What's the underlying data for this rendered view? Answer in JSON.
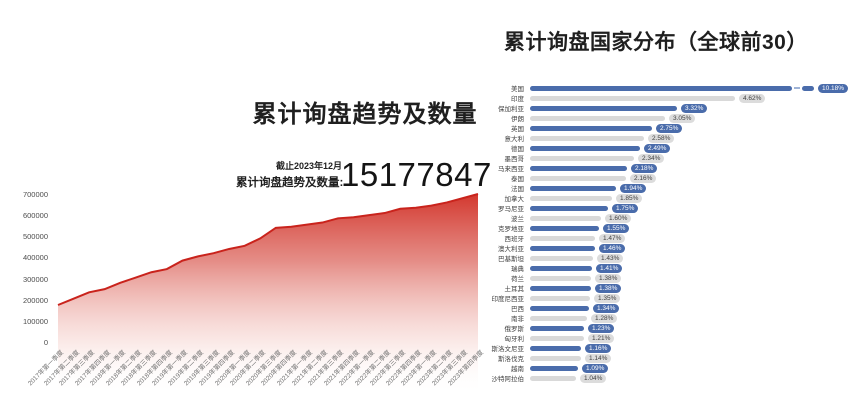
{
  "left_chart": {
    "title": "累计询盘趋势及数量",
    "asof_label": "截止2023年12月",
    "total_label": "累计询盘趋势及数量:",
    "total_value": "15177847"
  },
  "right_chart": {
    "title": "累计询盘国家分布（全球前30）"
  },
  "colors": {
    "area_line_red": "#c9231c",
    "area_fill_red": "#d02a20",
    "bar_blue": "#4a6cab",
    "bar_gray": "#d9d9d9",
    "badge_gray_bg": "#dcdcdc",
    "break_dash": "#9fb3d6"
  },
  "chart_data": [
    {
      "type": "area",
      "title": "累计询盘趋势及数量",
      "x": [
        "2017年第一季度",
        "2017年第二季度",
        "2017年第三季度",
        "2017年第四季度",
        "2018年第一季度",
        "2018年第二季度",
        "2018年第三季度",
        "2018年第四季度",
        "2019年第一季度",
        "2019年第二季度",
        "2019年第三季度",
        "2019年第四季度",
        "2020年第一季度",
        "2020年第二季度",
        "2020年第三季度",
        "2020年第四季度",
        "2021年第一季度",
        "2021年第二季度",
        "2021年第三季度",
        "2021年第四季度",
        "2022年第一季度",
        "2022年第二季度",
        "2022年第三季度",
        "2022年第四季度",
        "2023年第一季度",
        "2023年第二季度",
        "2023年第三季度",
        "2023年第四季度"
      ],
      "values": [
        175000,
        205000,
        235000,
        250000,
        280000,
        305000,
        330000,
        345000,
        385000,
        405000,
        420000,
        440000,
        455000,
        490000,
        540000,
        545000,
        555000,
        565000,
        585000,
        590000,
        600000,
        610000,
        630000,
        635000,
        645000,
        660000,
        680000,
        700000
      ],
      "ylim": [
        0,
        700000
      ],
      "yticks": [
        700000,
        600000,
        500000,
        400000,
        300000,
        200000,
        100000,
        0
      ],
      "grid": false,
      "legend": false
    },
    {
      "type": "bar",
      "orientation": "horizontal",
      "title": "累计询盘国家分布（全球前30）",
      "categories": [
        "美国",
        "印度",
        "保加利亚",
        "伊朗",
        "英国",
        "意大利",
        "德国",
        "墨西哥",
        "马来西亚",
        "泰国",
        "法国",
        "加拿大",
        "罗马尼亚",
        "波兰",
        "克罗地亚",
        "西班牙",
        "澳大利亚",
        "巴基斯坦",
        "瑞典",
        "荷兰",
        "土耳其",
        "印度尼西亚",
        "巴西",
        "南非",
        "俄罗斯",
        "匈牙利",
        "斯洛文尼亚",
        "斯洛伐克",
        "越南",
        "沙特阿拉伯"
      ],
      "values": [
        10.18,
        4.62,
        3.32,
        3.05,
        2.75,
        2.58,
        2.49,
        2.34,
        2.18,
        2.16,
        1.94,
        1.85,
        1.75,
        1.6,
        1.55,
        1.47,
        1.46,
        1.43,
        1.41,
        1.38,
        1.38,
        1.35,
        1.34,
        1.28,
        1.23,
        1.21,
        1.16,
        1.14,
        1.09,
        1.04
      ],
      "unit": "%",
      "truncated_first_bar": true,
      "legend": false
    }
  ]
}
